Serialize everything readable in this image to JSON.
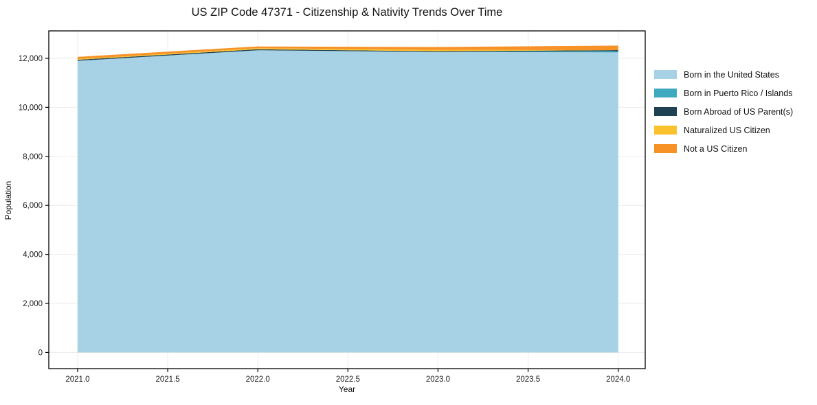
{
  "chart_data": {
    "type": "area",
    "stacked": true,
    "title": "US ZIP Code 47371 - Citizenship & Nativity Trends Over Time",
    "xlabel": "Year",
    "ylabel": "Population",
    "x": [
      2021,
      2022,
      2023,
      2024
    ],
    "series": [
      {
        "name": "Born in the United States",
        "color": "#a7d1e5",
        "values": [
          11900,
          12330,
          12260,
          12240
        ]
      },
      {
        "name": "Born in Puerto Rico / Islands",
        "color": "#3fa9bf",
        "values": [
          0,
          0,
          0,
          55
        ]
      },
      {
        "name": "Born Abroad of US Parent(s)",
        "color": "#1f4252",
        "values": [
          40,
          40,
          30,
          40
        ]
      },
      {
        "name": "Naturalized US Citizen",
        "color": "#fcc22d",
        "values": [
          30,
          45,
          55,
          0
        ]
      },
      {
        "name": "Not a US Citizen",
        "color": "#f79227",
        "values": [
          90,
          70,
          115,
          185
        ]
      }
    ],
    "x_ticks": [
      2021.0,
      2021.5,
      2022.0,
      2022.5,
      2023.0,
      2023.5,
      2024.0
    ],
    "x_tick_labels": [
      "2021.0",
      "2021.5",
      "2022.0",
      "2022.5",
      "2023.0",
      "2023.5",
      "2024.0"
    ],
    "y_ticks": [
      0,
      2000,
      4000,
      6000,
      8000,
      10000,
      12000
    ],
    "y_tick_labels": [
      "0",
      "2,000",
      "4,000",
      "6,000",
      "8,000",
      "10,000",
      "12,000"
    ],
    "xlim": [
      2020.84,
      2024.15
    ],
    "ylim": [
      -660,
      13120
    ],
    "grid": true,
    "legend_position": "outside-right",
    "colors": {
      "grid": "#ebebeb",
      "spine": "#000000",
      "tick_text": "#1a1a1a",
      "background": "#ffffff"
    }
  }
}
